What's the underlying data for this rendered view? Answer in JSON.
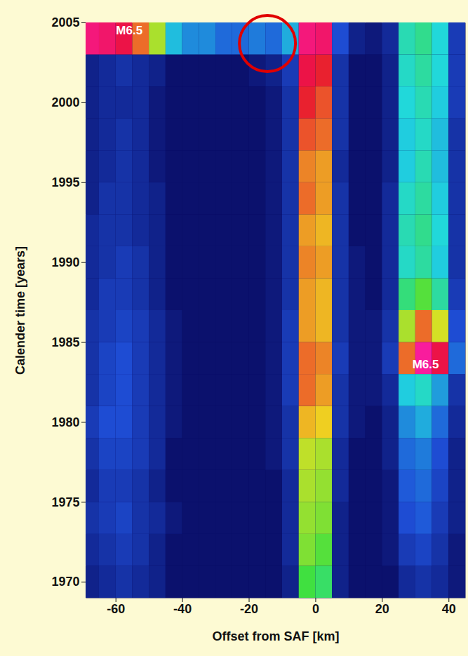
{
  "chart_data": {
    "type": "heatmap",
    "x_label": "Offset from SAF [km]",
    "y_label": "Calender time [years]",
    "xlim": [
      -69,
      45
    ],
    "ylim": [
      1969,
      2005
    ],
    "xticks": [
      -60,
      -40,
      -20,
      0,
      20,
      40
    ],
    "yticks": [
      1970,
      1975,
      1980,
      1985,
      1990,
      1995,
      2000,
      2005
    ],
    "heatmap": {
      "x_edges": [
        -69,
        -65,
        -60,
        -55,
        -50,
        -45,
        -40,
        -35,
        -30,
        -25,
        -20,
        -15,
        -10,
        -5,
        0,
        5,
        10,
        15,
        20,
        25,
        30,
        35,
        40,
        45
      ],
      "y_edges": [
        1969,
        1971,
        1973,
        1975,
        1977,
        1979,
        1981,
        1983,
        1985,
        1987,
        1989,
        1991,
        1993,
        1995,
        1997,
        1999,
        2001,
        2003,
        2005
      ],
      "zlim": [
        0,
        5
      ],
      "colors": [
        "#08085e",
        "#1f4fd8",
        "#20d8e0",
        "#40e040",
        "#f0e020",
        "#e81030",
        "#ff20c0"
      ],
      "cells": [
        [
          0.3,
          0.4,
          0.5,
          0.4,
          0.3,
          0.1,
          0.1,
          0.1,
          0.1,
          0.1,
          0.1,
          0.1,
          0.3,
          2.5,
          2.3,
          0.3,
          0.1,
          0.1,
          0.1,
          0.4,
          0.5,
          0.4,
          0.2
        ],
        [
          0.4,
          0.5,
          0.6,
          0.5,
          0.3,
          0.1,
          0.1,
          0.1,
          0.1,
          0.1,
          0.1,
          0.1,
          0.4,
          2.8,
          2.6,
          0.3,
          0.1,
          0.1,
          0.2,
          0.6,
          0.7,
          0.5,
          0.2
        ],
        [
          0.5,
          0.6,
          0.7,
          0.5,
          0.4,
          0.2,
          0.1,
          0.1,
          0.1,
          0.1,
          0.1,
          0.1,
          0.4,
          2.9,
          2.8,
          0.3,
          0.1,
          0.1,
          0.2,
          0.8,
          0.9,
          0.6,
          0.3
        ],
        [
          0.4,
          0.6,
          0.6,
          0.5,
          0.3,
          0.1,
          0.1,
          0.1,
          0.1,
          0.1,
          0.1,
          0.1,
          0.4,
          3.0,
          2.9,
          0.4,
          0.1,
          0.1,
          0.2,
          0.9,
          1.0,
          0.7,
          0.3
        ],
        [
          0.5,
          0.7,
          0.7,
          0.6,
          0.4,
          0.1,
          0.1,
          0.1,
          0.1,
          0.1,
          0.1,
          0.2,
          0.5,
          3.1,
          3.0,
          0.4,
          0.1,
          0.1,
          0.3,
          1.0,
          1.1,
          0.8,
          0.3
        ],
        [
          0.6,
          0.8,
          0.8,
          0.6,
          0.4,
          0.2,
          0.1,
          0.1,
          0.1,
          0.1,
          0.1,
          0.2,
          0.5,
          3.5,
          3.4,
          0.5,
          0.2,
          0.1,
          0.3,
          1.2,
          1.4,
          1.0,
          0.4
        ],
        [
          0.5,
          0.7,
          0.8,
          0.6,
          0.4,
          0.2,
          0.1,
          0.1,
          0.1,
          0.1,
          0.1,
          0.2,
          0.6,
          3.8,
          3.6,
          0.5,
          0.2,
          0.2,
          0.4,
          1.6,
          1.8,
          1.3,
          0.5
        ],
        [
          0.5,
          0.7,
          0.8,
          0.6,
          0.4,
          0.2,
          0.1,
          0.1,
          0.1,
          0.1,
          0.1,
          0.2,
          0.6,
          3.8,
          3.7,
          0.6,
          0.2,
          0.2,
          0.6,
          3.8,
          4.8,
          4.3,
          1.0
        ],
        [
          0.5,
          0.6,
          0.7,
          0.6,
          0.4,
          0.2,
          0.1,
          0.1,
          0.1,
          0.1,
          0.1,
          0.2,
          0.6,
          3.6,
          3.5,
          0.5,
          0.2,
          0.2,
          0.5,
          3.0,
          3.8,
          3.2,
          0.8
        ],
        [
          0.4,
          0.6,
          0.6,
          0.5,
          0.3,
          0.1,
          0.1,
          0.1,
          0.1,
          0.1,
          0.1,
          0.2,
          0.5,
          3.6,
          3.5,
          0.5,
          0.2,
          0.1,
          0.4,
          2.2,
          2.6,
          2.0,
          0.6
        ],
        [
          0.4,
          0.5,
          0.6,
          0.5,
          0.3,
          0.1,
          0.1,
          0.1,
          0.1,
          0.1,
          0.1,
          0.2,
          0.5,
          3.7,
          3.6,
          0.5,
          0.2,
          0.1,
          0.4,
          1.8,
          2.0,
          1.6,
          0.5
        ],
        [
          0.4,
          0.5,
          0.5,
          0.4,
          0.3,
          0.1,
          0.1,
          0.1,
          0.1,
          0.1,
          0.1,
          0.2,
          0.5,
          3.6,
          3.5,
          0.5,
          0.1,
          0.1,
          0.4,
          1.9,
          2.1,
          1.7,
          0.5
        ],
        [
          0.3,
          0.5,
          0.5,
          0.4,
          0.3,
          0.1,
          0.1,
          0.1,
          0.1,
          0.1,
          0.1,
          0.2,
          0.5,
          3.8,
          3.6,
          0.5,
          0.1,
          0.1,
          0.4,
          1.8,
          2.0,
          1.6,
          0.5
        ],
        [
          0.3,
          0.4,
          0.5,
          0.4,
          0.2,
          0.1,
          0.1,
          0.1,
          0.1,
          0.1,
          0.1,
          0.2,
          0.5,
          3.7,
          3.6,
          0.4,
          0.1,
          0.1,
          0.3,
          1.6,
          1.9,
          1.5,
          0.5
        ],
        [
          0.3,
          0.4,
          0.5,
          0.4,
          0.2,
          0.1,
          0.1,
          0.1,
          0.1,
          0.1,
          0.1,
          0.2,
          0.5,
          3.9,
          3.8,
          0.5,
          0.1,
          0.1,
          0.3,
          1.6,
          1.8,
          1.5,
          0.5
        ],
        [
          0.3,
          0.4,
          0.4,
          0.4,
          0.2,
          0.1,
          0.1,
          0.1,
          0.1,
          0.1,
          0.1,
          0.2,
          0.5,
          4.1,
          3.9,
          0.5,
          0.1,
          0.1,
          0.3,
          1.7,
          1.9,
          1.6,
          0.6
        ],
        [
          0.3,
          0.4,
          0.5,
          0.4,
          0.3,
          0.1,
          0.1,
          0.1,
          0.1,
          0.1,
          0.2,
          0.3,
          0.6,
          4.3,
          4.1,
          0.5,
          0.1,
          0.1,
          0.3,
          1.8,
          2.0,
          1.7,
          0.6
        ],
        [
          4.6,
          4.5,
          4.3,
          3.8,
          3.0,
          1.5,
          1.2,
          1.2,
          1.0,
          1.0,
          1.1,
          1.0,
          1.4,
          4.6,
          4.5,
          0.8,
          0.3,
          0.2,
          0.4,
          1.9,
          2.1,
          1.7,
          0.6
        ]
      ]
    },
    "annotations": [
      {
        "text": "M6.5",
        "x": -56,
        "y": 2004.5
      },
      {
        "text": "M6.5",
        "x": 33,
        "y": 1983.6
      }
    ],
    "highlight": {
      "x": -14.5,
      "y": 2003.7,
      "color": "#e00000",
      "marker": "circle"
    }
  }
}
